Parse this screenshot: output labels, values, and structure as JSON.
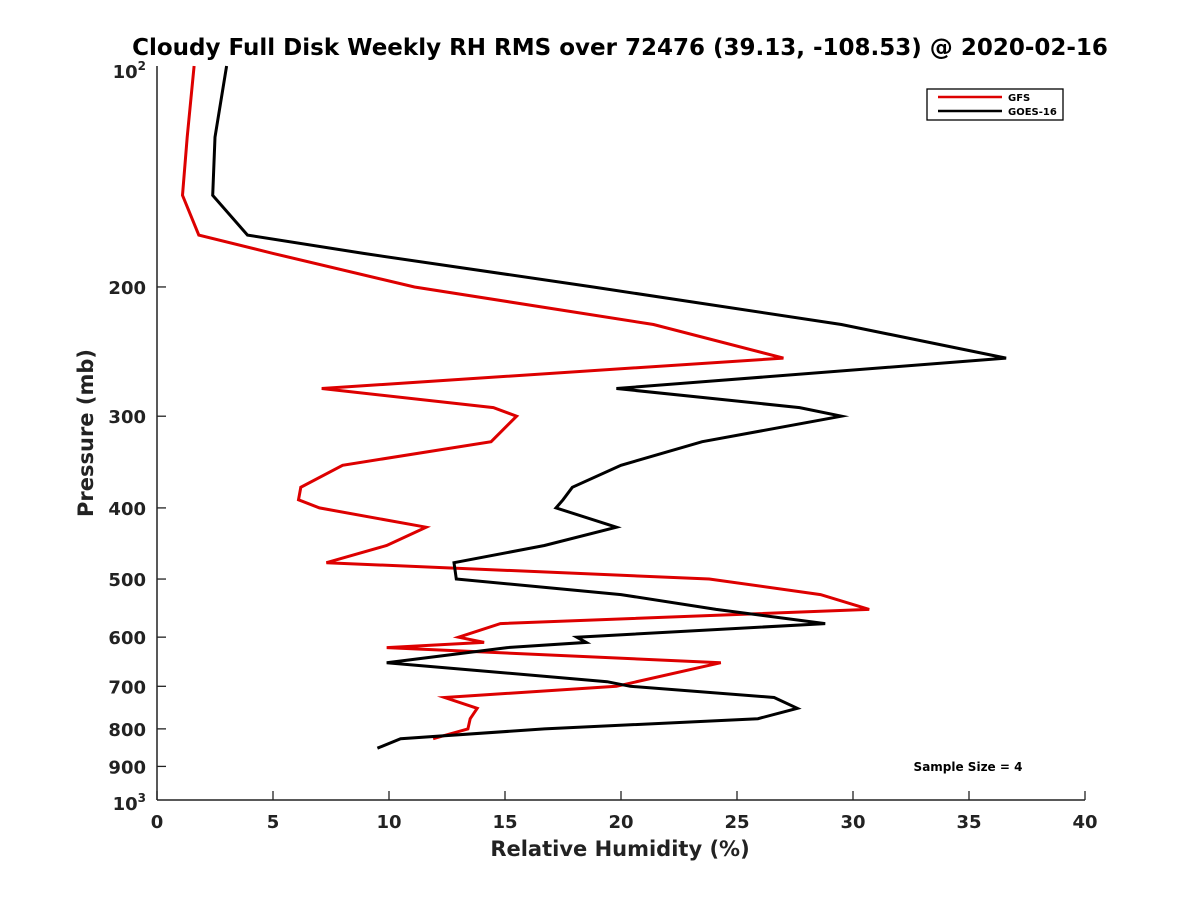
{
  "chart_data": {
    "type": "line",
    "title": "Cloudy Full Disk Weekly RH RMS over 72476 (39.13, -108.53) @ 2020-02-16",
    "xlabel": "Relative Humidity (%)",
    "ylabel": "Pressure (mb)",
    "xlim": [
      0,
      40
    ],
    "ylim": [
      100,
      1000
    ],
    "yscale": "log",
    "y_reversed": true,
    "x_ticks": [
      0,
      5,
      10,
      15,
      20,
      25,
      30,
      35,
      40
    ],
    "x_tick_labels": [
      "0",
      "5",
      "10",
      "15",
      "20",
      "25",
      "30",
      "35",
      "40"
    ],
    "y_ticks": [
      200,
      300,
      400,
      500,
      600,
      700,
      800,
      900
    ],
    "y_tick_labels": [
      "200",
      "300",
      "400",
      "500",
      "600",
      "700",
      "800",
      "900"
    ],
    "y_top_label": {
      "base": "10",
      "exp": "2"
    },
    "y_bottom_label": {
      "base": "10",
      "exp": "3"
    },
    "legend_position": "top-right",
    "grid": false,
    "annotation": "Sample Size = 4",
    "series": [
      {
        "name": "GFS",
        "color": "#dd0000",
        "points": [
          [
            1.6,
            100
          ],
          [
            1.3,
            125
          ],
          [
            1.1,
            150
          ],
          [
            1.8,
            170
          ],
          [
            5.0,
            180
          ],
          [
            11.1,
            200
          ],
          [
            21.4,
            225
          ],
          [
            27.0,
            250
          ],
          [
            7.1,
            275
          ],
          [
            14.5,
            292
          ],
          [
            15.5,
            300
          ],
          [
            14.4,
            325
          ],
          [
            8.0,
            350
          ],
          [
            6.2,
            375
          ],
          [
            6.1,
            390
          ],
          [
            7.0,
            400
          ],
          [
            11.6,
            425
          ],
          [
            9.9,
            450
          ],
          [
            7.3,
            475
          ],
          [
            23.8,
            500
          ],
          [
            28.6,
            525
          ],
          [
            30.7,
            550
          ],
          [
            14.8,
            575
          ],
          [
            13.0,
            600
          ],
          [
            14.1,
            610
          ],
          [
            9.9,
            620
          ],
          [
            24.3,
            650
          ],
          [
            19.8,
            700
          ],
          [
            12.4,
            725
          ],
          [
            13.8,
            750
          ],
          [
            13.5,
            775
          ],
          [
            13.4,
            800
          ],
          [
            11.9,
            825
          ]
        ]
      },
      {
        "name": "GOES-16",
        "color": "#000000",
        "points": [
          [
            3.0,
            100
          ],
          [
            2.5,
            125
          ],
          [
            2.4,
            150
          ],
          [
            3.9,
            170
          ],
          [
            8.9,
            180
          ],
          [
            18.8,
            200
          ],
          [
            29.5,
            225
          ],
          [
            36.6,
            250
          ],
          [
            19.8,
            275
          ],
          [
            27.7,
            292
          ],
          [
            29.5,
            300
          ],
          [
            23.5,
            325
          ],
          [
            20.0,
            350
          ],
          [
            17.9,
            375
          ],
          [
            17.5,
            390
          ],
          [
            17.2,
            400
          ],
          [
            19.8,
            425
          ],
          [
            16.7,
            450
          ],
          [
            12.8,
            475
          ],
          [
            12.9,
            500
          ],
          [
            20.0,
            525
          ],
          [
            24.1,
            550
          ],
          [
            28.8,
            575
          ],
          [
            18.1,
            600
          ],
          [
            18.5,
            610
          ],
          [
            15.1,
            620
          ],
          [
            9.9,
            650
          ],
          [
            19.4,
            690
          ],
          [
            20.4,
            700
          ],
          [
            26.6,
            725
          ],
          [
            27.6,
            750
          ],
          [
            25.9,
            775
          ],
          [
            16.7,
            800
          ],
          [
            10.5,
            825
          ],
          [
            9.5,
            850
          ]
        ]
      }
    ]
  }
}
